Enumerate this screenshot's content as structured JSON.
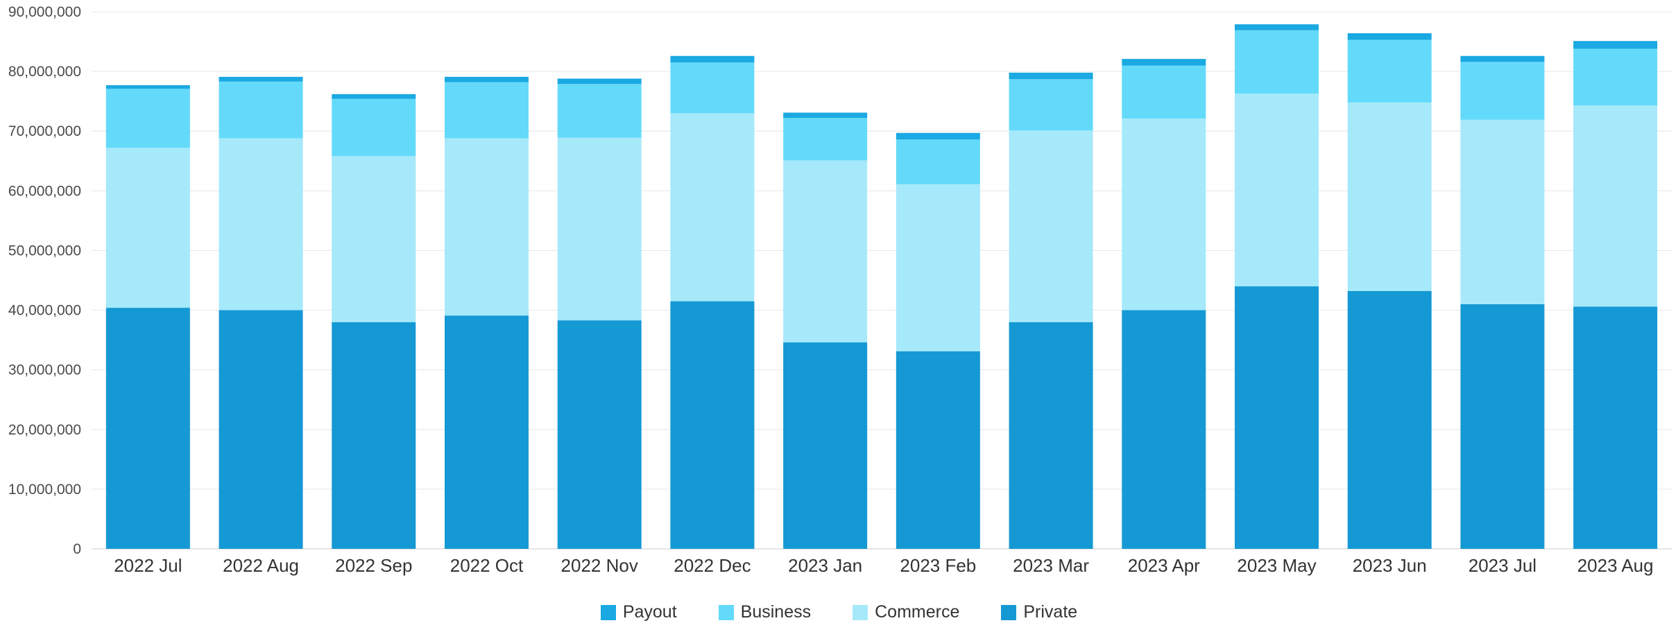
{
  "chart_data": {
    "type": "bar",
    "stacked": true,
    "categories": [
      "2022 Jul",
      "2022 Aug",
      "2022 Sep",
      "2022 Oct",
      "2022 Nov",
      "2022 Dec",
      "2023 Jan",
      "2023 Feb",
      "2023 Mar",
      "2023 Apr",
      "2023 May",
      "2023 Jun",
      "2023 Jul",
      "2023 Aug"
    ],
    "series": [
      {
        "name": "Private",
        "color": "#1599d4",
        "values": [
          40400000,
          40000000,
          38000000,
          39100000,
          38300000,
          41500000,
          34600000,
          33100000,
          38000000,
          40000000,
          44000000,
          43200000,
          41000000,
          40600000
        ]
      },
      {
        "name": "Commerce",
        "color": "#a6e9fb",
        "values": [
          26800000,
          28800000,
          27800000,
          29700000,
          30600000,
          31500000,
          30500000,
          28000000,
          32100000,
          32100000,
          32300000,
          31600000,
          30900000,
          33700000
        ]
      },
      {
        "name": "Business",
        "color": "#64dafa",
        "values": [
          9900000,
          9500000,
          9600000,
          9400000,
          9000000,
          8500000,
          7100000,
          7500000,
          8600000,
          8900000,
          10600000,
          10500000,
          9700000,
          9500000
        ]
      },
      {
        "name": "Payout",
        "color": "#1aa9e2",
        "values": [
          600000,
          800000,
          800000,
          900000,
          900000,
          1100000,
          900000,
          1100000,
          1100000,
          1100000,
          1000000,
          1100000,
          1000000,
          1300000
        ]
      }
    ],
    "legend_order": [
      "Payout",
      "Business",
      "Commerce",
      "Private"
    ],
    "y_ticks": [
      0,
      10000000,
      20000000,
      30000000,
      40000000,
      50000000,
      60000000,
      70000000,
      80000000,
      90000000
    ],
    "y_tick_labels": [
      "0",
      "10,000,000",
      "20,000,000",
      "30,000,000",
      "40,000,000",
      "50,000,000",
      "60,000,000",
      "70,000,000",
      "80,000,000",
      "90,000,000"
    ],
    "ylim": [
      0,
      90000000
    ],
    "title": "",
    "xlabel": "",
    "ylabel": "",
    "grid": true,
    "legend_position": "bottom-center"
  }
}
